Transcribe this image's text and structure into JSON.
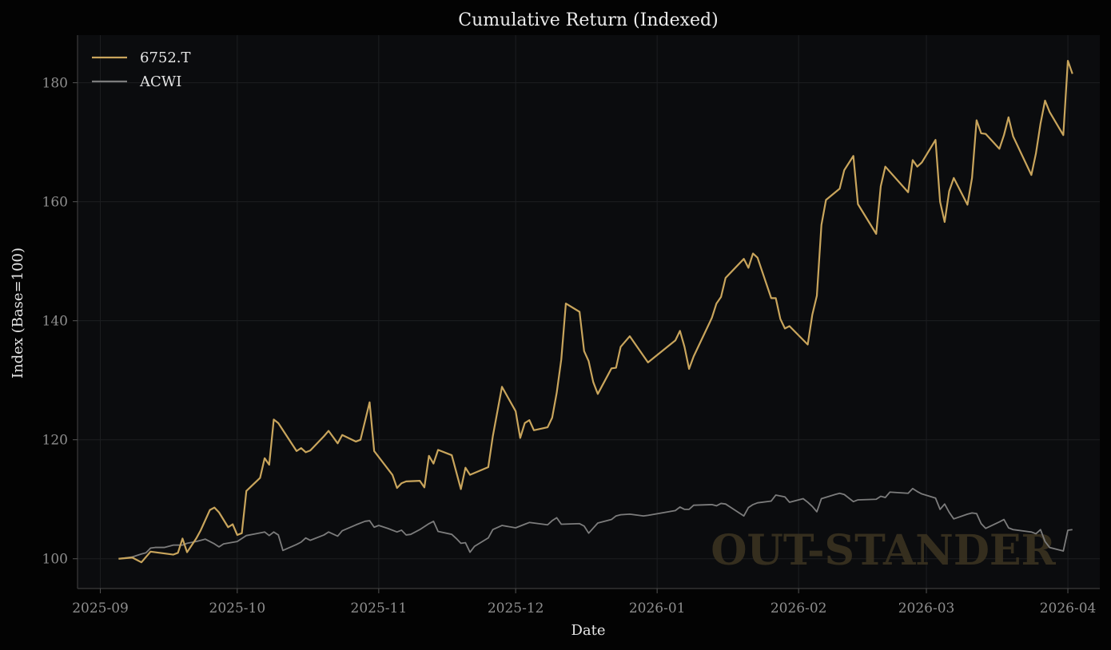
{
  "chart_data": {
    "type": "line",
    "title": "Cumulative Return (Indexed)",
    "xlabel": "Date",
    "ylabel": "Index (Base=100)",
    "x_ticks": [
      "2025-09",
      "2025-10",
      "2025-11",
      "2025-12",
      "2026-01",
      "2026-02",
      "2026-03",
      "2026-04"
    ],
    "y_ticks": [
      100,
      120,
      140,
      160,
      180
    ],
    "xlim": [
      "2025-08-27",
      "2026-04-08"
    ],
    "ylim": [
      95,
      188
    ],
    "grid": true,
    "legend": "top-left",
    "watermark": "OUT-STANDER",
    "colors": {
      "6752.T": "#c9a55c",
      "ACWI": "#7c7c7c",
      "background": "#0b0c0e",
      "page": "#030303"
    },
    "series": [
      {
        "name": "6752.T",
        "points": [
          [
            "2025-09-05",
            100.0
          ],
          [
            "2025-09-08",
            100.2
          ],
          [
            "2025-09-10",
            99.4
          ],
          [
            "2025-09-12",
            101.2
          ],
          [
            "2025-09-17",
            100.7
          ],
          [
            "2025-09-18",
            101.0
          ],
          [
            "2025-09-19",
            103.4
          ],
          [
            "2025-09-20",
            101.1
          ],
          [
            "2025-09-22",
            103.4
          ],
          [
            "2025-09-23",
            104.8
          ],
          [
            "2025-09-25",
            108.2
          ],
          [
            "2025-09-26",
            108.6
          ],
          [
            "2025-09-27",
            107.8
          ],
          [
            "2025-09-29",
            105.3
          ],
          [
            "2025-09-30",
            105.8
          ],
          [
            "2025-10-01",
            104.0
          ],
          [
            "2025-10-02",
            104.3
          ],
          [
            "2025-10-03",
            111.4
          ],
          [
            "2025-10-06",
            113.6
          ],
          [
            "2025-10-07",
            116.9
          ],
          [
            "2025-10-08",
            115.8
          ],
          [
            "2025-10-09",
            123.4
          ],
          [
            "2025-10-10",
            122.8
          ],
          [
            "2025-10-14",
            118.1
          ],
          [
            "2025-10-15",
            118.6
          ],
          [
            "2025-10-16",
            117.9
          ],
          [
            "2025-10-17",
            118.2
          ],
          [
            "2025-10-20",
            120.6
          ],
          [
            "2025-10-21",
            121.5
          ],
          [
            "2025-10-23",
            119.4
          ],
          [
            "2025-10-24",
            120.8
          ],
          [
            "2025-10-27",
            119.7
          ],
          [
            "2025-10-28",
            120.0
          ],
          [
            "2025-10-30",
            126.3
          ],
          [
            "2025-10-31",
            118.1
          ],
          [
            "2025-11-04",
            114.1
          ],
          [
            "2025-11-05",
            111.9
          ],
          [
            "2025-11-06",
            112.7
          ],
          [
            "2025-11-07",
            113.0
          ],
          [
            "2025-11-10",
            113.1
          ],
          [
            "2025-11-11",
            112.0
          ],
          [
            "2025-11-12",
            117.3
          ],
          [
            "2025-11-13",
            116.0
          ],
          [
            "2025-11-14",
            118.3
          ],
          [
            "2025-11-17",
            117.4
          ],
          [
            "2025-11-19",
            111.7
          ],
          [
            "2025-11-20",
            115.3
          ],
          [
            "2025-11-21",
            114.1
          ],
          [
            "2025-11-25",
            115.4
          ],
          [
            "2025-11-26",
            120.6
          ],
          [
            "2025-11-28",
            128.9
          ],
          [
            "2025-12-01",
            124.8
          ],
          [
            "2025-12-02",
            120.3
          ],
          [
            "2025-12-03",
            122.8
          ],
          [
            "2025-12-04",
            123.3
          ],
          [
            "2025-12-05",
            121.6
          ],
          [
            "2025-12-08",
            122.1
          ],
          [
            "2025-12-09",
            123.7
          ],
          [
            "2025-12-10",
            127.9
          ],
          [
            "2025-12-11",
            133.5
          ],
          [
            "2025-12-12",
            142.9
          ],
          [
            "2025-12-15",
            141.5
          ],
          [
            "2025-12-16",
            134.9
          ],
          [
            "2025-12-17",
            133.2
          ],
          [
            "2025-12-18",
            129.7
          ],
          [
            "2025-12-19",
            127.7
          ],
          [
            "2025-12-22",
            132.0
          ],
          [
            "2025-12-23",
            132.1
          ],
          [
            "2025-12-24",
            135.6
          ],
          [
            "2025-12-26",
            137.4
          ],
          [
            "2025-12-30",
            133.0
          ],
          [
            "2026-01-05",
            136.7
          ],
          [
            "2026-01-06",
            138.3
          ],
          [
            "2026-01-07",
            135.6
          ],
          [
            "2026-01-08",
            131.9
          ],
          [
            "2026-01-09",
            134.0
          ],
          [
            "2026-01-13",
            140.5
          ],
          [
            "2026-01-14",
            142.9
          ],
          [
            "2026-01-15",
            144.0
          ],
          [
            "2026-01-16",
            147.2
          ],
          [
            "2026-01-20",
            150.4
          ],
          [
            "2026-01-21",
            148.9
          ],
          [
            "2026-01-22",
            151.3
          ],
          [
            "2026-01-23",
            150.6
          ],
          [
            "2026-01-26",
            143.8
          ],
          [
            "2026-01-27",
            143.8
          ],
          [
            "2026-01-28",
            140.3
          ],
          [
            "2026-01-29",
            138.7
          ],
          [
            "2026-01-30",
            139.1
          ],
          [
            "2026-02-03",
            136.0
          ],
          [
            "2026-02-04",
            141.0
          ],
          [
            "2026-02-05",
            144.2
          ],
          [
            "2026-02-06",
            156.1
          ],
          [
            "2026-02-07",
            160.3
          ],
          [
            "2026-02-10",
            162.2
          ],
          [
            "2026-02-11",
            165.3
          ],
          [
            "2026-02-13",
            167.7
          ],
          [
            "2026-02-14",
            159.6
          ],
          [
            "2026-02-18",
            154.6
          ],
          [
            "2026-02-19",
            162.6
          ],
          [
            "2026-02-20",
            165.9
          ],
          [
            "2026-02-25",
            161.6
          ],
          [
            "2026-02-26",
            167.0
          ],
          [
            "2026-02-27",
            165.9
          ],
          [
            "2026-02-28",
            166.6
          ],
          [
            "2026-03-03",
            170.4
          ],
          [
            "2026-03-04",
            160.0
          ],
          [
            "2026-03-05",
            156.6
          ],
          [
            "2026-03-06",
            161.8
          ],
          [
            "2026-03-07",
            164.0
          ],
          [
            "2026-03-10",
            159.5
          ],
          [
            "2026-03-11",
            164.0
          ],
          [
            "2026-03-12",
            173.7
          ],
          [
            "2026-03-13",
            171.5
          ],
          [
            "2026-03-14",
            171.4
          ],
          [
            "2026-03-17",
            168.9
          ],
          [
            "2026-03-18",
            171.2
          ],
          [
            "2026-03-19",
            174.2
          ],
          [
            "2026-03-20",
            171.0
          ],
          [
            "2026-03-24",
            164.5
          ],
          [
            "2026-03-25",
            168.1
          ],
          [
            "2026-03-26",
            173.1
          ],
          [
            "2026-03-27",
            177.0
          ],
          [
            "2026-03-28",
            175.1
          ],
          [
            "2026-03-31",
            171.2
          ],
          [
            "2026-04-01",
            183.7
          ],
          [
            "2026-04-02",
            181.5
          ]
        ]
      },
      {
        "name": "ACWI",
        "points": [
          [
            "2025-09-05",
            100.0
          ],
          [
            "2025-09-08",
            100.3
          ],
          [
            "2025-09-10",
            100.8
          ],
          [
            "2025-09-11",
            101.0
          ],
          [
            "2025-09-12",
            101.8
          ],
          [
            "2025-09-13",
            101.9
          ],
          [
            "2025-09-15",
            101.9
          ],
          [
            "2025-09-17",
            102.3
          ],
          [
            "2025-09-19",
            102.3
          ],
          [
            "2025-09-20",
            102.6
          ],
          [
            "2025-09-22",
            102.9
          ],
          [
            "2025-09-24",
            103.3
          ],
          [
            "2025-09-26",
            102.5
          ],
          [
            "2025-09-27",
            102.0
          ],
          [
            "2025-09-28",
            102.5
          ],
          [
            "2025-10-01",
            102.9
          ],
          [
            "2025-10-03",
            103.9
          ],
          [
            "2025-10-05",
            104.2
          ],
          [
            "2025-10-07",
            104.5
          ],
          [
            "2025-10-08",
            103.9
          ],
          [
            "2025-10-09",
            104.5
          ],
          [
            "2025-10-10",
            104.0
          ],
          [
            "2025-10-11",
            101.4
          ],
          [
            "2025-10-14",
            102.4
          ],
          [
            "2025-10-15",
            102.8
          ],
          [
            "2025-10-16",
            103.5
          ],
          [
            "2025-10-17",
            103.1
          ],
          [
            "2025-10-20",
            104.0
          ],
          [
            "2025-10-21",
            104.5
          ],
          [
            "2025-10-23",
            103.8
          ],
          [
            "2025-10-24",
            104.7
          ],
          [
            "2025-10-27",
            105.7
          ],
          [
            "2025-10-29",
            106.3
          ],
          [
            "2025-10-30",
            106.4
          ],
          [
            "2025-10-31",
            105.3
          ],
          [
            "2025-11-01",
            105.6
          ],
          [
            "2025-11-03",
            105.1
          ],
          [
            "2025-11-05",
            104.5
          ],
          [
            "2025-11-06",
            104.8
          ],
          [
            "2025-11-07",
            104.0
          ],
          [
            "2025-11-08",
            104.1
          ],
          [
            "2025-11-10",
            104.9
          ],
          [
            "2025-11-12",
            105.9
          ],
          [
            "2025-11-13",
            106.3
          ],
          [
            "2025-11-14",
            104.6
          ],
          [
            "2025-11-17",
            104.1
          ],
          [
            "2025-11-18",
            103.4
          ],
          [
            "2025-11-19",
            102.6
          ],
          [
            "2025-11-20",
            102.7
          ],
          [
            "2025-11-21",
            101.1
          ],
          [
            "2025-11-22",
            102.1
          ],
          [
            "2025-11-25",
            103.5
          ],
          [
            "2025-11-26",
            104.9
          ],
          [
            "2025-11-28",
            105.6
          ],
          [
            "2025-12-01",
            105.2
          ],
          [
            "2025-12-03",
            105.8
          ],
          [
            "2025-12-04",
            106.1
          ],
          [
            "2025-12-08",
            105.7
          ],
          [
            "2025-12-09",
            106.4
          ],
          [
            "2025-12-10",
            106.9
          ],
          [
            "2025-12-11",
            105.8
          ],
          [
            "2025-12-15",
            105.9
          ],
          [
            "2025-12-16",
            105.5
          ],
          [
            "2025-12-17",
            104.3
          ],
          [
            "2025-12-19",
            106.0
          ],
          [
            "2025-12-22",
            106.6
          ],
          [
            "2025-12-23",
            107.2
          ],
          [
            "2025-12-24",
            107.4
          ],
          [
            "2025-12-26",
            107.5
          ],
          [
            "2025-12-29",
            107.2
          ],
          [
            "2025-12-30",
            107.3
          ],
          [
            "2026-01-02",
            107.7
          ],
          [
            "2026-01-05",
            108.1
          ],
          [
            "2026-01-06",
            108.7
          ],
          [
            "2026-01-07",
            108.3
          ],
          [
            "2026-01-08",
            108.3
          ],
          [
            "2026-01-09",
            109.0
          ],
          [
            "2026-01-13",
            109.1
          ],
          [
            "2026-01-14",
            108.9
          ],
          [
            "2026-01-15",
            109.3
          ],
          [
            "2026-01-16",
            109.2
          ],
          [
            "2026-01-20",
            107.2
          ],
          [
            "2026-01-21",
            108.6
          ],
          [
            "2026-01-22",
            109.1
          ],
          [
            "2026-01-23",
            109.4
          ],
          [
            "2026-01-26",
            109.7
          ],
          [
            "2026-01-27",
            110.7
          ],
          [
            "2026-01-29",
            110.4
          ],
          [
            "2026-01-30",
            109.5
          ],
          [
            "2026-02-02",
            110.1
          ],
          [
            "2026-02-03",
            109.5
          ],
          [
            "2026-02-04",
            108.8
          ],
          [
            "2026-02-05",
            107.9
          ],
          [
            "2026-02-06",
            110.1
          ],
          [
            "2026-02-09",
            110.8
          ],
          [
            "2026-02-10",
            111.0
          ],
          [
            "2026-02-11",
            110.8
          ],
          [
            "2026-02-13",
            109.6
          ],
          [
            "2026-02-14",
            109.9
          ],
          [
            "2026-02-18",
            110.0
          ],
          [
            "2026-02-19",
            110.5
          ],
          [
            "2026-02-20",
            110.3
          ],
          [
            "2026-02-21",
            111.2
          ],
          [
            "2026-02-25",
            111.0
          ],
          [
            "2026-02-26",
            111.8
          ],
          [
            "2026-02-27",
            111.3
          ],
          [
            "2026-02-28",
            110.9
          ],
          [
            "2026-03-03",
            110.2
          ],
          [
            "2026-03-04",
            108.3
          ],
          [
            "2026-03-05",
            109.2
          ],
          [
            "2026-03-06",
            107.8
          ],
          [
            "2026-03-07",
            106.7
          ],
          [
            "2026-03-10",
            107.5
          ],
          [
            "2026-03-11",
            107.7
          ],
          [
            "2026-03-12",
            107.6
          ],
          [
            "2026-03-13",
            105.9
          ],
          [
            "2026-03-14",
            105.1
          ],
          [
            "2026-03-17",
            106.2
          ],
          [
            "2026-03-18",
            106.6
          ],
          [
            "2026-03-19",
            105.2
          ],
          [
            "2026-03-20",
            104.9
          ],
          [
            "2026-03-24",
            104.5
          ],
          [
            "2026-03-25",
            104.2
          ],
          [
            "2026-03-26",
            104.9
          ],
          [
            "2026-03-27",
            102.9
          ],
          [
            "2026-03-28",
            101.9
          ],
          [
            "2026-03-31",
            101.3
          ],
          [
            "2026-04-01",
            104.8
          ],
          [
            "2026-04-02",
            104.9
          ]
        ]
      }
    ]
  }
}
